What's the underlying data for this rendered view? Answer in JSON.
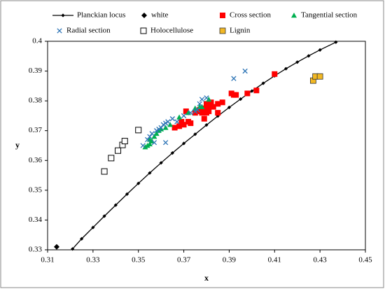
{
  "chart_data": {
    "type": "scatter",
    "xlabel": "x",
    "ylabel": "y",
    "xlim": [
      0.31,
      0.45
    ],
    "xticks": [
      0.31,
      0.33,
      0.35,
      0.37,
      0.39,
      0.41,
      0.43,
      0.45
    ],
    "ylim": [
      0.33,
      0.4
    ],
    "yticks": [
      0.33,
      0.34,
      0.35,
      0.36,
      0.37,
      0.38,
      0.39,
      0.4
    ],
    "grid": false,
    "legend": "top",
    "series": [
      {
        "name": "Planckian locus",
        "color": "#000000",
        "marker": "diamond",
        "line": true,
        "x": [
          0.321,
          0.325,
          0.33,
          0.335,
          0.34,
          0.345,
          0.35,
          0.355,
          0.36,
          0.365,
          0.37,
          0.375,
          0.38,
          0.385,
          0.39,
          0.395,
          0.4,
          0.405,
          0.41,
          0.415,
          0.42,
          0.425,
          0.43,
          0.437
        ],
        "y": [
          0.3303,
          0.3337,
          0.3375,
          0.3413,
          0.345,
          0.3487,
          0.3523,
          0.3558,
          0.3592,
          0.3625,
          0.3657,
          0.3688,
          0.3719,
          0.3749,
          0.3778,
          0.3806,
          0.3833,
          0.3859,
          0.3884,
          0.3908,
          0.393,
          0.3951,
          0.3971,
          0.3997
        ]
      },
      {
        "name": "white",
        "color": "#000000",
        "marker": "diamond",
        "x": [
          0.314
        ],
        "y": [
          0.331
        ]
      },
      {
        "name": "Cross section",
        "color": "#ff0000",
        "marker": "square",
        "x": [
          0.366,
          0.368,
          0.369,
          0.37,
          0.371,
          0.373,
          0.375,
          0.376,
          0.377,
          0.378,
          0.379,
          0.379,
          0.38,
          0.38,
          0.381,
          0.382,
          0.383,
          0.385,
          0.385,
          0.387,
          0.391,
          0.392,
          0.393,
          0.398,
          0.402,
          0.41,
          0.372,
          0.381
        ],
        "y": [
          0.371,
          0.3715,
          0.373,
          0.372,
          0.3765,
          0.3725,
          0.376,
          0.3765,
          0.377,
          0.376,
          0.3775,
          0.374,
          0.376,
          0.379,
          0.378,
          0.3795,
          0.378,
          0.376,
          0.379,
          0.3795,
          0.3825,
          0.382,
          0.382,
          0.3825,
          0.3835,
          0.389,
          0.373,
          0.3765
        ]
      },
      {
        "name": "Tangential section",
        "color": "#00b050",
        "marker": "triangle",
        "x": [
          0.353,
          0.354,
          0.355,
          0.355,
          0.356,
          0.357,
          0.358,
          0.359,
          0.36,
          0.362,
          0.364,
          0.368,
          0.372,
          0.375,
          0.377,
          0.378,
          0.381
        ],
        "y": [
          0.3645,
          0.365,
          0.3655,
          0.367,
          0.3665,
          0.368,
          0.369,
          0.37,
          0.3705,
          0.371,
          0.372,
          0.3745,
          0.376,
          0.3775,
          0.378,
          0.378,
          0.3805
        ]
      },
      {
        "name": "Radial section",
        "color": "#2e75b6",
        "marker": "x",
        "x": [
          0.352,
          0.354,
          0.355,
          0.356,
          0.357,
          0.358,
          0.359,
          0.36,
          0.361,
          0.362,
          0.363,
          0.362,
          0.365,
          0.367,
          0.37,
          0.373,
          0.375,
          0.377,
          0.378,
          0.38,
          0.392,
          0.397,
          0.376
        ],
        "y": [
          0.365,
          0.367,
          0.368,
          0.369,
          0.366,
          0.37,
          0.3705,
          0.371,
          0.372,
          0.3725,
          0.373,
          0.366,
          0.374,
          0.373,
          0.375,
          0.376,
          0.3765,
          0.379,
          0.3805,
          0.381,
          0.3875,
          0.39,
          0.377
        ]
      },
      {
        "name": "Holocellulose",
        "color": "#000000",
        "marker": "square-open",
        "x": [
          0.335,
          0.338,
          0.341,
          0.343,
          0.344,
          0.35
        ],
        "y": [
          0.3563,
          0.3608,
          0.3633,
          0.3652,
          0.3665,
          0.3702
        ]
      },
      {
        "name": "Lignin",
        "color": "#f2b824",
        "marker": "square",
        "x": [
          0.427,
          0.428,
          0.43
        ],
        "y": [
          0.3868,
          0.3882,
          0.3882
        ]
      }
    ]
  }
}
